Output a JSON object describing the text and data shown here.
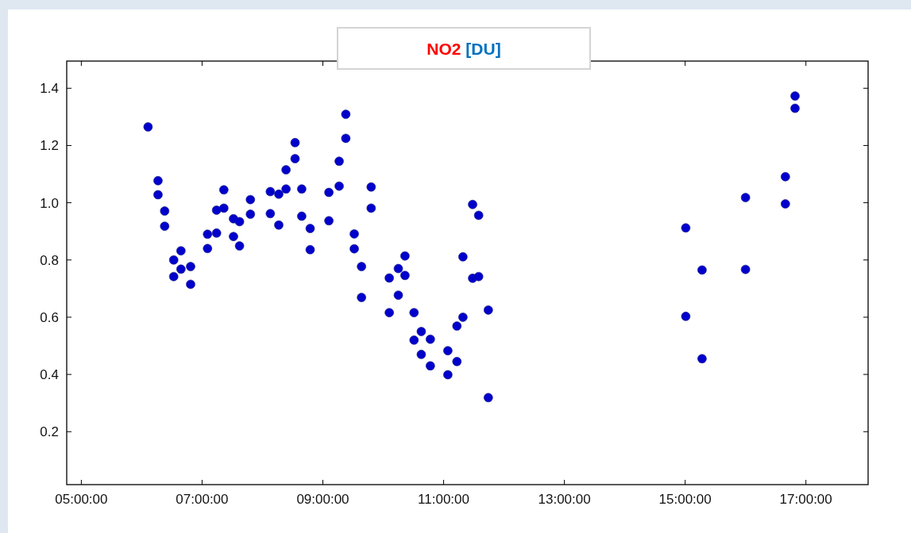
{
  "chart_data": {
    "type": "scatter",
    "title": "NO2 [DU]",
    "x": [
      6.105,
      6.27,
      6.27,
      6.38,
      6.38,
      6.53,
      6.53,
      6.65,
      6.65,
      6.81,
      6.81,
      7.09,
      7.09,
      7.24,
      7.24,
      7.36,
      7.36,
      7.52,
      7.52,
      7.62,
      7.62,
      7.8,
      7.8,
      8.13,
      8.13,
      8.27,
      8.27,
      8.39,
      8.39,
      8.54,
      8.54,
      8.65,
      8.65,
      8.79,
      8.79,
      9.1,
      9.1,
      9.27,
      9.27,
      9.38,
      9.38,
      9.52,
      9.52,
      9.64,
      9.64,
      9.8,
      9.8,
      10.1,
      10.1,
      10.25,
      10.25,
      10.36,
      10.36,
      10.51,
      10.51,
      10.63,
      10.63,
      10.78,
      10.78,
      11.07,
      11.07,
      11.22,
      11.22,
      11.32,
      11.32,
      11.48,
      11.48,
      11.58,
      11.58,
      11.74,
      11.74,
      15.01,
      15.01,
      15.28,
      15.28,
      16.0,
      16.0,
      16.66,
      16.66,
      16.82,
      16.82
    ],
    "values": [
      1.265,
      1.077,
      1.028,
      0.971,
      0.918,
      0.8,
      0.742,
      0.832,
      0.768,
      0.777,
      0.715,
      0.89,
      0.84,
      0.974,
      0.894,
      1.045,
      0.981,
      0.944,
      0.882,
      0.934,
      0.849,
      1.011,
      0.96,
      1.039,
      0.962,
      1.03,
      0.922,
      1.115,
      1.048,
      1.21,
      1.154,
      1.048,
      0.953,
      0.91,
      0.836,
      1.036,
      0.937,
      1.145,
      1.058,
      1.309,
      1.225,
      0.891,
      0.839,
      0.777,
      0.669,
      1.055,
      0.981,
      0.737,
      0.616,
      0.77,
      0.677,
      0.814,
      0.746,
      0.616,
      0.52,
      0.55,
      0.47,
      0.523,
      0.43,
      0.483,
      0.399,
      0.569,
      0.445,
      0.6,
      0.811,
      0.994,
      0.736,
      0.956,
      0.742,
      0.625,
      0.319,
      0.912,
      0.603,
      0.765,
      0.455,
      1.018,
      0.767,
      1.091,
      0.996,
      1.373,
      1.33
    ],
    "color": "#0000cc",
    "marker": "circle",
    "xlim": [
      4.758,
      18.03
    ],
    "xticks": [
      {
        "value": 5,
        "label": "05:00:00"
      },
      {
        "value": 7,
        "label": "07:00:00"
      },
      {
        "value": 9,
        "label": "09:00:00"
      },
      {
        "value": 11,
        "label": "11:00:00"
      },
      {
        "value": 13,
        "label": "13:00:00"
      },
      {
        "value": 15,
        "label": "15:00:00"
      },
      {
        "value": 17,
        "label": "17:00:00"
      }
    ],
    "ylim": [
      0.015,
      1.495
    ],
    "yticks": [
      0.2,
      0.4,
      0.6,
      0.8,
      {
        "value": 1,
        "label": "1.0"
      },
      1.2,
      1.4
    ]
  }
}
